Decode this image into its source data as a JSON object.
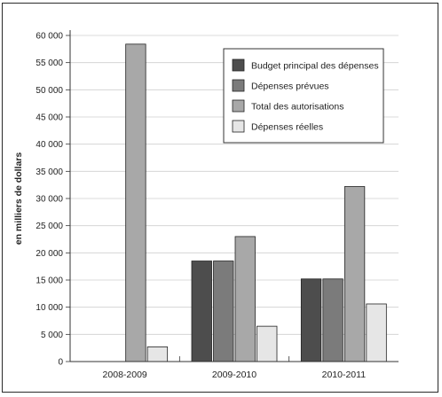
{
  "chart_data": {
    "type": "bar",
    "categories": [
      "2008-2009",
      "2009-2010",
      "2010-2011"
    ],
    "series": [
      {
        "name": "Budget principal des dépenses",
        "values": [
          0,
          18500,
          15200
        ],
        "color": "#4d4d4d"
      },
      {
        "name": "Dépenses prévues",
        "values": [
          0,
          18500,
          15200
        ],
        "color": "#7b7b7b"
      },
      {
        "name": "Total des autorisations",
        "values": [
          58400,
          23000,
          32200
        ],
        "color": "#a8a8a8"
      },
      {
        "name": "Dépenses réelles",
        "values": [
          2700,
          6500,
          10600
        ],
        "color": "#e6e6e6"
      }
    ],
    "ylabel": "en milliers de dollars",
    "xlabel": "",
    "ylim": [
      0,
      60000
    ],
    "yticks": [
      0,
      5000,
      10000,
      15000,
      20000,
      25000,
      30000,
      35000,
      40000,
      45000,
      50000,
      55000,
      60000
    ],
    "ytick_labels": [
      "0",
      "5 000",
      "10 000",
      "15 000",
      "20 000",
      "25 000",
      "30 000",
      "35 000",
      "40 000",
      "45 000",
      "50 000",
      "55 000",
      "60 000"
    ],
    "grid": true,
    "legend_position": "top-right"
  }
}
